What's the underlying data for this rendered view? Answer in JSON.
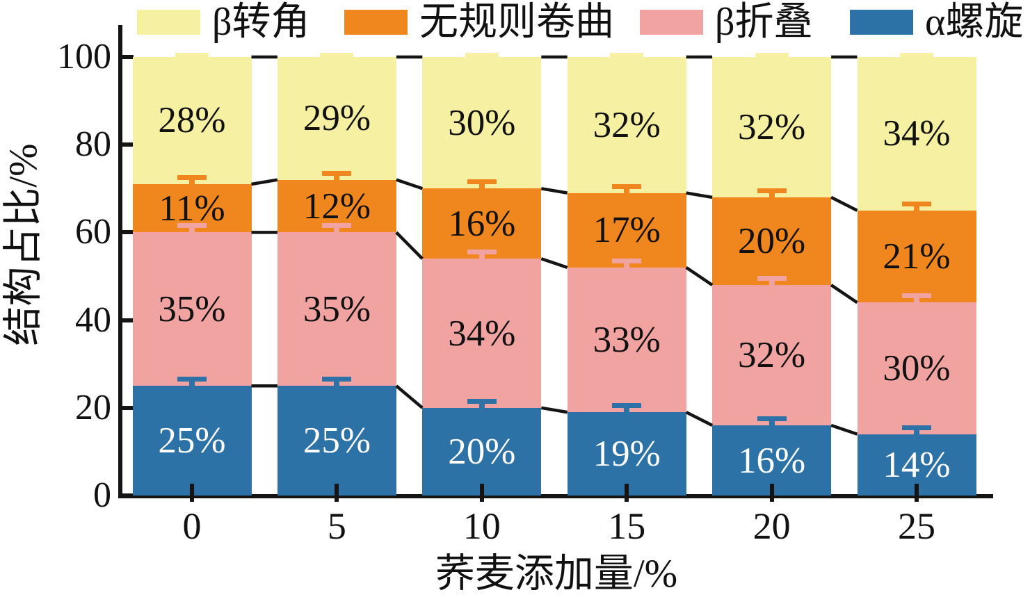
{
  "chart_data": {
    "type": "bar",
    "stacked": true,
    "orientation": "vertical",
    "title": "",
    "xlabel": "荞麦添加量/%",
    "ylabel": "结构占比/%",
    "categories": [
      0,
      5,
      10,
      15,
      20,
      25
    ],
    "series": [
      {
        "name": "α螺旋",
        "color": "#2C72A6",
        "values": [
          25,
          25,
          20,
          19,
          16,
          14
        ],
        "value_labels": [
          "25%",
          "25%",
          "20%",
          "19%",
          "16%",
          "14%"
        ],
        "label_color": "#ffffff"
      },
      {
        "name": "β折叠",
        "color": "#F1A3A1",
        "values": [
          35,
          35,
          34,
          33,
          32,
          30
        ],
        "value_labels": [
          "35%",
          "35%",
          "34%",
          "33%",
          "32%",
          "30%"
        ],
        "label_color": "#111111"
      },
      {
        "name": "无规则卷曲",
        "color": "#EF861E",
        "values": [
          11,
          12,
          16,
          17,
          20,
          21
        ],
        "value_labels": [
          "11%",
          "12%",
          "16%",
          "17%",
          "20%",
          "21%"
        ],
        "label_color": "#111111"
      },
      {
        "name": "β转角",
        "color": "#F5F0A2",
        "values": [
          28,
          29,
          30,
          32,
          32,
          34
        ],
        "value_labels": [
          "28%",
          "29%",
          "30%",
          "32%",
          "32%",
          "34%"
        ],
        "label_color": "#111111"
      }
    ],
    "legend_order": [
      "β转角",
      "无规则卷曲",
      "β折叠",
      "α螺旋"
    ],
    "legend_position": "top",
    "ylim": [
      0,
      100
    ],
    "yticks": [
      0,
      20,
      40,
      60,
      80,
      100
    ],
    "grid": false,
    "error_bars": true,
    "error_bar_approx": 1,
    "connector_lines": true,
    "axis_color": "#141414"
  }
}
